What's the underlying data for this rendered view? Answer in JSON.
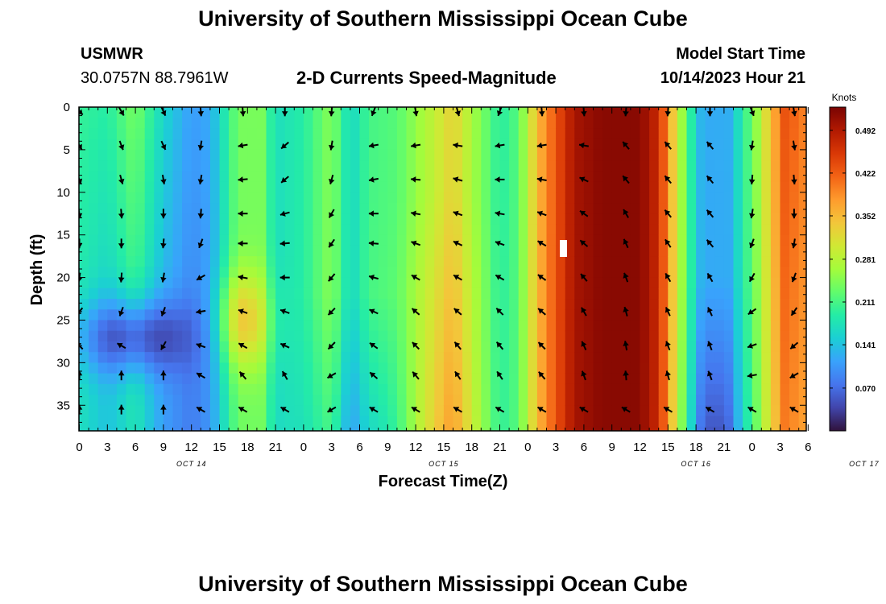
{
  "header": {
    "title": "University of Southern Mississippi Ocean Cube",
    "station": "USMWR",
    "coords": "30.0757N  88.7961W",
    "plot_title": "2-D Currents Speed-Magnitude",
    "model_label": "Model Start Time",
    "model_time": "10/14/2023 Hour 21"
  },
  "footer": {
    "title": "University of Southern Mississippi Ocean Cube"
  },
  "chart_data": {
    "type": "heatmap",
    "title": "2-D Currents Speed-Magnitude",
    "xlabel": "Forecast Time(Z)",
    "ylabel": "Depth (ft)",
    "x_ticks": [
      "0",
      "3",
      "6",
      "9",
      "12",
      "15",
      "18",
      "21",
      "0",
      "3",
      "6",
      "9",
      "12",
      "15",
      "18",
      "21",
      "0",
      "3",
      "6",
      "9",
      "12",
      "15",
      "18",
      "21",
      "0",
      "3",
      "6"
    ],
    "day_labels": [
      {
        "label": "OCT 14",
        "hour": 12
      },
      {
        "label": "OCT 15",
        "hour": 39
      },
      {
        "label": "OCT 16",
        "hour": 66
      },
      {
        "label": "OCT 17",
        "hour": 84
      }
    ],
    "xlim": [
      0,
      78
    ],
    "y_ticks": [
      0,
      5,
      10,
      15,
      20,
      25,
      30,
      35
    ],
    "ylim": [
      0,
      38
    ],
    "colorbar": {
      "label": "Knots",
      "ticks": [
        "0.492",
        "0.422",
        "0.352",
        "0.281",
        "0.211",
        "0.141",
        "0.070"
      ],
      "range": [
        0.0,
        0.53
      ],
      "colors": [
        "#30123b",
        "#4145ab",
        "#4675ed",
        "#39a2fc",
        "#1bcfd4",
        "#24eca6",
        "#61fc6c",
        "#a4fc3b",
        "#d1e834",
        "#f3c63a",
        "#fe9b2d",
        "#f36315",
        "#d93806",
        "#b11901",
        "#7a0403"
      ]
    },
    "arrow_hours": [
      0,
      4.5,
      9,
      13,
      17.5,
      22,
      27,
      31.5,
      36,
      40.5,
      45,
      49.5,
      54,
      58.5,
      63,
      67.5,
      72,
      76.5
    ],
    "arrow_depths": [
      0.5,
      4.5,
      8.5,
      12.5,
      16,
      20,
      24,
      28,
      31.5,
      35.5
    ],
    "arrow_dirs": [
      [
        135,
        150,
        155,
        175,
        175,
        180,
        185,
        200,
        170,
        165,
        200,
        175,
        175,
        185,
        185,
        180,
        160,
        170
      ],
      [
        150,
        160,
        155,
        190,
        260,
        230,
        190,
        260,
        260,
        280,
        260,
        260,
        280,
        320,
        320,
        320,
        190,
        170
      ],
      [
        160,
        165,
        170,
        190,
        265,
        230,
        195,
        260,
        275,
        285,
        270,
        280,
        295,
        320,
        320,
        320,
        185,
        175
      ],
      [
        170,
        175,
        180,
        185,
        270,
        255,
        210,
        270,
        280,
        290,
        280,
        290,
        305,
        330,
        320,
        320,
        190,
        180
      ],
      [
        180,
        180,
        185,
        200,
        270,
        265,
        215,
        275,
        290,
        295,
        290,
        300,
        310,
        335,
        325,
        320,
        200,
        190
      ],
      [
        190,
        185,
        190,
        240,
        280,
        270,
        220,
        285,
        300,
        300,
        300,
        305,
        320,
        340,
        330,
        330,
        210,
        200
      ],
      [
        220,
        200,
        200,
        260,
        290,
        290,
        225,
        295,
        310,
        310,
        315,
        310,
        330,
        345,
        335,
        335,
        235,
        215
      ],
      [
        315,
        300,
        210,
        290,
        300,
        295,
        225,
        305,
        315,
        320,
        320,
        315,
        335,
        350,
        340,
        340,
        250,
        230
      ],
      [
        0,
        0,
        0,
        300,
        320,
        330,
        240,
        310,
        320,
        325,
        325,
        320,
        340,
        355,
        345,
        340,
        260,
        240
      ],
      [
        0,
        0,
        0,
        300,
        300,
        300,
        240,
        300,
        300,
        300,
        300,
        300,
        300,
        300,
        300,
        300,
        300,
        300
      ]
    ]
  }
}
